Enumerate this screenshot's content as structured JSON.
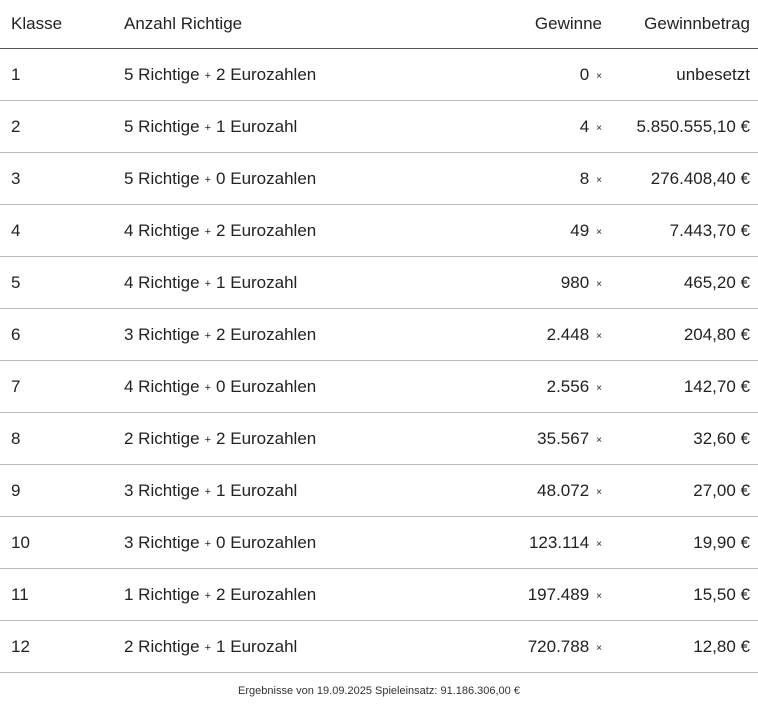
{
  "table": {
    "headers": {
      "klasse": "Klasse",
      "richtige": "Anzahl Richtige",
      "gewinne": "Gewinne",
      "betrag": "Gewinnbetrag"
    },
    "rows": [
      {
        "klasse": "1",
        "richtige_count": "5 Richtige",
        "plus": "+",
        "euro": "2 Eurozahlen",
        "gewinne": "0",
        "times": "×",
        "betrag": "unbesetzt"
      },
      {
        "klasse": "2",
        "richtige_count": "5 Richtige",
        "plus": "+",
        "euro": "1 Eurozahl",
        "gewinne": "4",
        "times": "×",
        "betrag": "5.850.555,10 €"
      },
      {
        "klasse": "3",
        "richtige_count": "5 Richtige",
        "plus": "+",
        "euro": "0 Eurozahlen",
        "gewinne": "8",
        "times": "×",
        "betrag": "276.408,40 €"
      },
      {
        "klasse": "4",
        "richtige_count": "4 Richtige",
        "plus": "+",
        "euro": "2 Eurozahlen",
        "gewinne": "49",
        "times": "×",
        "betrag": "7.443,70 €"
      },
      {
        "klasse": "5",
        "richtige_count": "4 Richtige",
        "plus": "+",
        "euro": "1 Eurozahl",
        "gewinne": "980",
        "times": "×",
        "betrag": "465,20 €"
      },
      {
        "klasse": "6",
        "richtige_count": "3 Richtige",
        "plus": "+",
        "euro": "2 Eurozahlen",
        "gewinne": "2.448",
        "times": "×",
        "betrag": "204,80 €"
      },
      {
        "klasse": "7",
        "richtige_count": "4 Richtige",
        "plus": "+",
        "euro": "0 Eurozahlen",
        "gewinne": "2.556",
        "times": "×",
        "betrag": "142,70 €"
      },
      {
        "klasse": "8",
        "richtige_count": "2 Richtige",
        "plus": "+",
        "euro": "2 Eurozahlen",
        "gewinne": "35.567",
        "times": "×",
        "betrag": "32,60 €"
      },
      {
        "klasse": "9",
        "richtige_count": "3 Richtige",
        "plus": "+",
        "euro": "1 Eurozahl",
        "gewinne": "48.072",
        "times": "×",
        "betrag": "27,00 €"
      },
      {
        "klasse": "10",
        "richtige_count": "3 Richtige",
        "plus": "+",
        "euro": "0 Eurozahlen",
        "gewinne": "123.114",
        "times": "×",
        "betrag": "19,90 €"
      },
      {
        "klasse": "11",
        "richtige_count": "1 Richtige",
        "plus": "+",
        "euro": "2 Eurozahlen",
        "gewinne": "197.489",
        "times": "×",
        "betrag": "15,50 €"
      },
      {
        "klasse": "12",
        "richtige_count": "2 Richtige",
        "plus": "+",
        "euro": "1 Eurozahl",
        "gewinne": "720.788",
        "times": "×",
        "betrag": "12,80 €"
      }
    ]
  },
  "footer": {
    "note": "Ergebnisse von 19.09.2025 Spieleinsatz: 91.186.306,00 €"
  }
}
